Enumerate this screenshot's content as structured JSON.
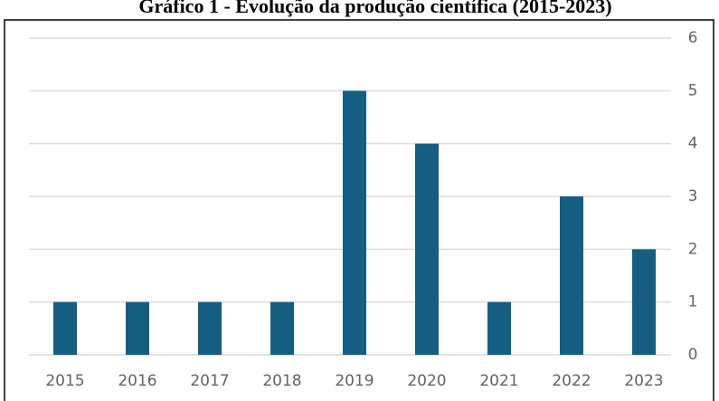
{
  "chart_data": {
    "type": "bar",
    "title": "Gráfico 1 - Evolução da produção científica (2015-2023)",
    "categories": [
      "2015",
      "2016",
      "2017",
      "2018",
      "2019",
      "2020",
      "2021",
      "2022",
      "2023"
    ],
    "values": [
      1,
      1,
      1,
      1,
      5,
      4,
      1,
      3,
      2
    ],
    "color": "#165e80",
    "ylim": [
      0,
      6
    ],
    "yticks": [
      0,
      1,
      2,
      3,
      4,
      5,
      6
    ],
    "grid": true
  }
}
